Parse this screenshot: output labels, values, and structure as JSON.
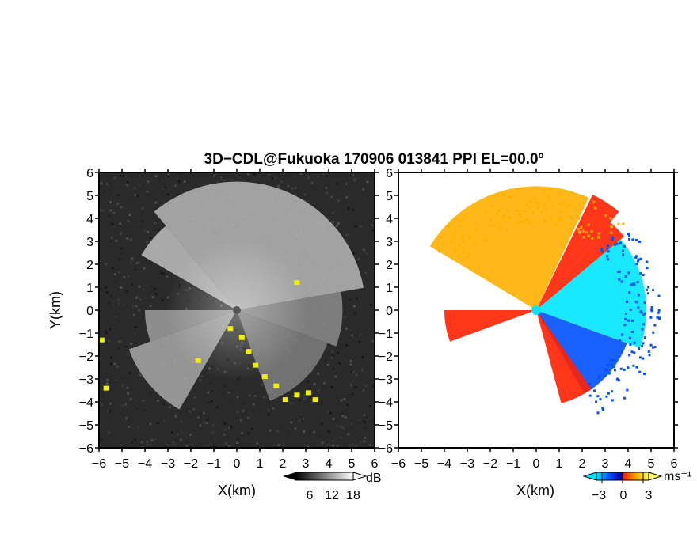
{
  "figure": {
    "title": "3D−CDL@Fukuoka 170906 013841 PPI EL=00.0º"
  },
  "chart_data": [
    {
      "type": "heatmap",
      "panel": "reflectivity",
      "xlabel": "X(km)",
      "ylabel": "Y(km)",
      "xlim": [
        -6,
        6
      ],
      "ylim": [
        -6,
        6
      ],
      "xticks": [
        "−6",
        "−5",
        "−4",
        "−3",
        "−2",
        "−1",
        "0",
        "1",
        "2",
        "3",
        "4",
        "5",
        "6"
      ],
      "yticks": [
        "−6",
        "−5",
        "−4",
        "−3",
        "−2",
        "−1",
        "0",
        "1",
        "2",
        "3",
        "4",
        "5",
        "6"
      ],
      "radar_center": [
        0,
        0
      ],
      "colorbar": {
        "unit": "dB",
        "tick_labels": [
          "6",
          "12",
          "18"
        ],
        "ticks": [
          6,
          12,
          18
        ],
        "range": [
          0,
          21
        ],
        "colormap": [
          "#000000",
          "#ffffff"
        ]
      },
      "overlay": {
        "name": "clutter",
        "color": "#f0f000"
      },
      "sectors": [
        {
          "from_deg": 10,
          "to_deg": 130,
          "min_km": 0,
          "max_km": 5.6,
          "level": 0.72
        },
        {
          "from_deg": 130,
          "to_deg": 150,
          "min_km": 0,
          "max_km": 4.8,
          "level": 0.75
        },
        {
          "from_deg": 180,
          "to_deg": 200,
          "min_km": 0,
          "max_km": 4.0,
          "level": 0.62
        },
        {
          "from_deg": 200,
          "to_deg": 240,
          "min_km": 0,
          "max_km": 5.0,
          "level": 0.66
        },
        {
          "from_deg": -20,
          "to_deg": 10,
          "min_km": 0,
          "max_km": 4.6,
          "level": 0.55
        },
        {
          "from_deg": -70,
          "to_deg": -20,
          "min_km": 0,
          "max_km": 4.2,
          "level": 0.5
        }
      ]
    },
    {
      "type": "heatmap",
      "panel": "doppler_velocity",
      "xlabel": "X(km)",
      "ylabel": "",
      "xlim": [
        -6,
        6
      ],
      "ylim": [
        -6,
        6
      ],
      "xticks": [
        "−6",
        "−5",
        "−4",
        "−3",
        "−2",
        "−1",
        "0",
        "1",
        "2",
        "3",
        "4",
        "5",
        "6"
      ],
      "yticks": [
        "−6",
        "−5",
        "−4",
        "−3",
        "−2",
        "−1",
        "0",
        "1",
        "2",
        "3",
        "4",
        "5",
        "6"
      ],
      "radar_center": [
        0,
        0
      ],
      "colorbar": {
        "unit": "ms⁻¹",
        "tick_labels": [
          "−3",
          "0",
          "3"
        ],
        "ticks": [
          -3,
          0,
          3
        ],
        "range": [
          -5,
          5
        ],
        "colormap": [
          "#00e5ff",
          "#0050ff",
          "#0000a0",
          "#ff2000",
          "#ffb000",
          "#ffff60"
        ]
      },
      "sectors": [
        {
          "from_deg": 65,
          "to_deg": 150,
          "min_km": 0,
          "max_km": 5.4,
          "velocity": 3.5
        },
        {
          "from_deg": 50,
          "to_deg": 65,
          "min_km": 0,
          "max_km": 5.6,
          "velocity": 2.5
        },
        {
          "from_deg": 180,
          "to_deg": 200,
          "min_km": 0,
          "max_km": 4.0,
          "velocity": 1.5
        },
        {
          "from_deg": 40,
          "to_deg": 50,
          "min_km": 0,
          "max_km": 5.0,
          "velocity": 1.0
        },
        {
          "from_deg": -20,
          "to_deg": 40,
          "min_km": 0,
          "max_km": 4.8,
          "velocity": -3.5
        },
        {
          "from_deg": -60,
          "to_deg": -20,
          "min_km": 0,
          "max_km": 4.2,
          "velocity": -2.0
        },
        {
          "from_deg": -75,
          "to_deg": -55,
          "min_km": 0,
          "max_km": 4.2,
          "velocity": 1.5
        }
      ]
    }
  ]
}
